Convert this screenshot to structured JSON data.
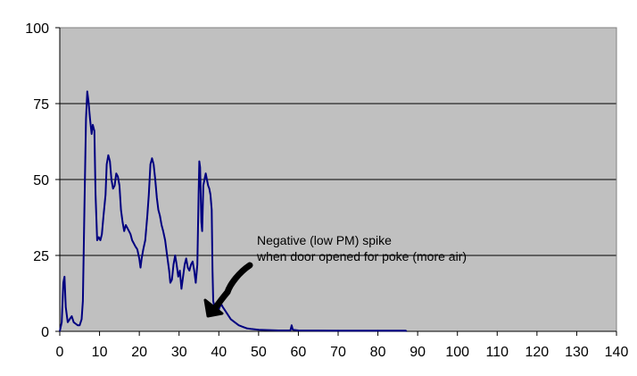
{
  "chart_data": {
    "type": "line",
    "title": "",
    "xlabel": "",
    "ylabel": "",
    "xlim": [
      0,
      140
    ],
    "ylim": [
      0,
      100
    ],
    "x_ticks": [
      "0",
      "10",
      "20",
      "30",
      "40",
      "50",
      "60",
      "70",
      "80",
      "90",
      "100",
      "110",
      "120",
      "130",
      "140"
    ],
    "y_ticks": [
      "0",
      "25",
      "50",
      "75",
      "100"
    ],
    "grid": "horizontal",
    "plot_background": "#c0c0c0",
    "series": [
      {
        "color": "#000080",
        "points": [
          [
            0,
            0
          ],
          [
            0.5,
            3
          ],
          [
            0.9,
            16
          ],
          [
            1.2,
            18
          ],
          [
            1.5,
            8
          ],
          [
            2,
            3
          ],
          [
            2.5,
            4
          ],
          [
            3,
            5
          ],
          [
            3.5,
            3
          ],
          [
            4,
            2.5
          ],
          [
            4.5,
            2
          ],
          [
            5,
            2
          ],
          [
            5.5,
            4
          ],
          [
            5.8,
            10
          ],
          [
            6.2,
            40
          ],
          [
            6.6,
            70
          ],
          [
            6.9,
            79
          ],
          [
            7.2,
            76
          ],
          [
            7.6,
            70
          ],
          [
            8,
            65
          ],
          [
            8.3,
            68
          ],
          [
            8.7,
            66
          ],
          [
            9,
            45
          ],
          [
            9.4,
            30
          ],
          [
            9.8,
            31
          ],
          [
            10.2,
            30
          ],
          [
            10.6,
            32
          ],
          [
            11,
            38
          ],
          [
            11.5,
            45
          ],
          [
            11.8,
            55
          ],
          [
            12.2,
            58
          ],
          [
            12.6,
            56
          ],
          [
            13,
            50
          ],
          [
            13.4,
            47
          ],
          [
            13.8,
            48
          ],
          [
            14.2,
            52
          ],
          [
            14.6,
            51
          ],
          [
            15,
            48
          ],
          [
            15.4,
            40
          ],
          [
            15.8,
            36
          ],
          [
            16.2,
            33
          ],
          [
            16.6,
            35
          ],
          [
            17,
            34
          ],
          [
            17.4,
            33
          ],
          [
            17.8,
            32
          ],
          [
            18.2,
            30
          ],
          [
            18.6,
            29
          ],
          [
            19,
            28
          ],
          [
            19.5,
            27
          ],
          [
            20,
            24
          ],
          [
            20.3,
            21
          ],
          [
            20.6,
            24
          ],
          [
            21,
            27
          ],
          [
            21.5,
            30
          ],
          [
            22,
            38
          ],
          [
            22.4,
            45
          ],
          [
            22.8,
            55
          ],
          [
            23.2,
            57
          ],
          [
            23.6,
            55
          ],
          [
            24,
            50
          ],
          [
            24.4,
            44
          ],
          [
            24.8,
            40
          ],
          [
            25.2,
            38
          ],
          [
            25.6,
            35
          ],
          [
            26,
            33
          ],
          [
            26.5,
            30
          ],
          [
            27,
            25
          ],
          [
            27.5,
            20
          ],
          [
            27.8,
            16
          ],
          [
            28.2,
            17
          ],
          [
            28.6,
            22
          ],
          [
            29,
            25
          ],
          [
            29.4,
            22
          ],
          [
            29.8,
            18
          ],
          [
            30.2,
            20
          ],
          [
            30.6,
            14
          ],
          [
            31,
            18
          ],
          [
            31.4,
            22
          ],
          [
            31.8,
            24
          ],
          [
            32.2,
            21
          ],
          [
            32.6,
            20
          ],
          [
            33,
            22
          ],
          [
            33.4,
            23
          ],
          [
            33.8,
            20
          ],
          [
            34.2,
            16
          ],
          [
            34.6,
            22
          ],
          [
            34.9,
            45
          ],
          [
            35.1,
            56
          ],
          [
            35.3,
            54
          ],
          [
            35.6,
            36
          ],
          [
            35.8,
            33
          ],
          [
            36.1,
            48
          ],
          [
            36.4,
            50
          ],
          [
            36.7,
            52
          ],
          [
            37,
            50
          ],
          [
            37.3,
            48
          ],
          [
            37.6,
            47
          ],
          [
            37.9,
            45
          ],
          [
            38.2,
            40
          ],
          [
            38.4,
            20
          ],
          [
            38.6,
            10
          ],
          [
            38.9,
            8
          ],
          [
            39.3,
            7
          ],
          [
            39.7,
            6
          ],
          [
            40.2,
            8
          ],
          [
            40.6,
            9
          ],
          [
            41,
            8
          ],
          [
            41.5,
            7
          ],
          [
            42,
            6
          ],
          [
            43,
            4
          ],
          [
            44,
            3
          ],
          [
            45,
            2
          ],
          [
            46,
            1.5
          ],
          [
            47,
            1
          ],
          [
            48,
            0.8
          ],
          [
            50,
            0.5
          ],
          [
            55,
            0.3
          ],
          [
            58,
            0.3
          ],
          [
            58.3,
            2
          ],
          [
            58.6,
            0.5
          ],
          [
            60,
            0.3
          ],
          [
            70,
            0.2
          ],
          [
            80,
            0.2
          ],
          [
            87,
            0.2
          ],
          [
            87.2,
            0
          ]
        ]
      }
    ],
    "annotation": {
      "line1": "Negative (low PM) spike",
      "line2": "when door opened for poke (more air)"
    }
  }
}
